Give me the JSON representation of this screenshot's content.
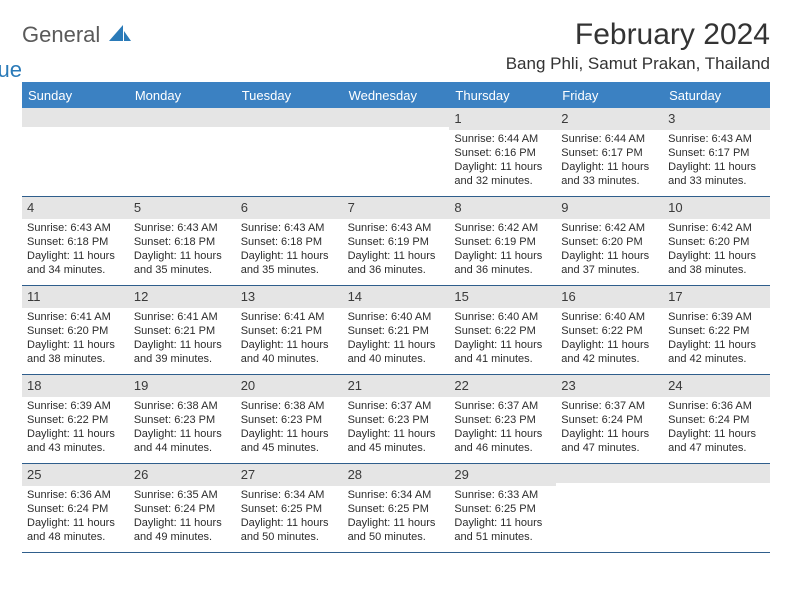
{
  "brand": {
    "word1": "General",
    "word2": "Blue"
  },
  "title": "February 2024",
  "location": "Bang Phli, Samut Prakan, Thailand",
  "colors": {
    "header_bar": "#3b81c2",
    "daynum_bg": "#e5e5e5",
    "week_divider": "#2f5e8c",
    "text": "#2c2c2c",
    "brand_gray": "#5a5a5a",
    "brand_blue": "#2a7ab8"
  },
  "dow": [
    "Sunday",
    "Monday",
    "Tuesday",
    "Wednesday",
    "Thursday",
    "Friday",
    "Saturday"
  ],
  "weeks": [
    [
      {
        "day": "",
        "empty": true
      },
      {
        "day": "",
        "empty": true
      },
      {
        "day": "",
        "empty": true
      },
      {
        "day": "",
        "empty": true
      },
      {
        "day": "1",
        "sunrise": "Sunrise: 6:44 AM",
        "sunset": "Sunset: 6:16 PM",
        "daylight": "Daylight: 11 hours and 32 minutes."
      },
      {
        "day": "2",
        "sunrise": "Sunrise: 6:44 AM",
        "sunset": "Sunset: 6:17 PM",
        "daylight": "Daylight: 11 hours and 33 minutes."
      },
      {
        "day": "3",
        "sunrise": "Sunrise: 6:43 AM",
        "sunset": "Sunset: 6:17 PM",
        "daylight": "Daylight: 11 hours and 33 minutes."
      }
    ],
    [
      {
        "day": "4",
        "sunrise": "Sunrise: 6:43 AM",
        "sunset": "Sunset: 6:18 PM",
        "daylight": "Daylight: 11 hours and 34 minutes."
      },
      {
        "day": "5",
        "sunrise": "Sunrise: 6:43 AM",
        "sunset": "Sunset: 6:18 PM",
        "daylight": "Daylight: 11 hours and 35 minutes."
      },
      {
        "day": "6",
        "sunrise": "Sunrise: 6:43 AM",
        "sunset": "Sunset: 6:18 PM",
        "daylight": "Daylight: 11 hours and 35 minutes."
      },
      {
        "day": "7",
        "sunrise": "Sunrise: 6:43 AM",
        "sunset": "Sunset: 6:19 PM",
        "daylight": "Daylight: 11 hours and 36 minutes."
      },
      {
        "day": "8",
        "sunrise": "Sunrise: 6:42 AM",
        "sunset": "Sunset: 6:19 PM",
        "daylight": "Daylight: 11 hours and 36 minutes."
      },
      {
        "day": "9",
        "sunrise": "Sunrise: 6:42 AM",
        "sunset": "Sunset: 6:20 PM",
        "daylight": "Daylight: 11 hours and 37 minutes."
      },
      {
        "day": "10",
        "sunrise": "Sunrise: 6:42 AM",
        "sunset": "Sunset: 6:20 PM",
        "daylight": "Daylight: 11 hours and 38 minutes."
      }
    ],
    [
      {
        "day": "11",
        "sunrise": "Sunrise: 6:41 AM",
        "sunset": "Sunset: 6:20 PM",
        "daylight": "Daylight: 11 hours and 38 minutes."
      },
      {
        "day": "12",
        "sunrise": "Sunrise: 6:41 AM",
        "sunset": "Sunset: 6:21 PM",
        "daylight": "Daylight: 11 hours and 39 minutes."
      },
      {
        "day": "13",
        "sunrise": "Sunrise: 6:41 AM",
        "sunset": "Sunset: 6:21 PM",
        "daylight": "Daylight: 11 hours and 40 minutes."
      },
      {
        "day": "14",
        "sunrise": "Sunrise: 6:40 AM",
        "sunset": "Sunset: 6:21 PM",
        "daylight": "Daylight: 11 hours and 40 minutes."
      },
      {
        "day": "15",
        "sunrise": "Sunrise: 6:40 AM",
        "sunset": "Sunset: 6:22 PM",
        "daylight": "Daylight: 11 hours and 41 minutes."
      },
      {
        "day": "16",
        "sunrise": "Sunrise: 6:40 AM",
        "sunset": "Sunset: 6:22 PM",
        "daylight": "Daylight: 11 hours and 42 minutes."
      },
      {
        "day": "17",
        "sunrise": "Sunrise: 6:39 AM",
        "sunset": "Sunset: 6:22 PM",
        "daylight": "Daylight: 11 hours and 42 minutes."
      }
    ],
    [
      {
        "day": "18",
        "sunrise": "Sunrise: 6:39 AM",
        "sunset": "Sunset: 6:22 PM",
        "daylight": "Daylight: 11 hours and 43 minutes."
      },
      {
        "day": "19",
        "sunrise": "Sunrise: 6:38 AM",
        "sunset": "Sunset: 6:23 PM",
        "daylight": "Daylight: 11 hours and 44 minutes."
      },
      {
        "day": "20",
        "sunrise": "Sunrise: 6:38 AM",
        "sunset": "Sunset: 6:23 PM",
        "daylight": "Daylight: 11 hours and 45 minutes."
      },
      {
        "day": "21",
        "sunrise": "Sunrise: 6:37 AM",
        "sunset": "Sunset: 6:23 PM",
        "daylight": "Daylight: 11 hours and 45 minutes."
      },
      {
        "day": "22",
        "sunrise": "Sunrise: 6:37 AM",
        "sunset": "Sunset: 6:23 PM",
        "daylight": "Daylight: 11 hours and 46 minutes."
      },
      {
        "day": "23",
        "sunrise": "Sunrise: 6:37 AM",
        "sunset": "Sunset: 6:24 PM",
        "daylight": "Daylight: 11 hours and 47 minutes."
      },
      {
        "day": "24",
        "sunrise": "Sunrise: 6:36 AM",
        "sunset": "Sunset: 6:24 PM",
        "daylight": "Daylight: 11 hours and 47 minutes."
      }
    ],
    [
      {
        "day": "25",
        "sunrise": "Sunrise: 6:36 AM",
        "sunset": "Sunset: 6:24 PM",
        "daylight": "Daylight: 11 hours and 48 minutes."
      },
      {
        "day": "26",
        "sunrise": "Sunrise: 6:35 AM",
        "sunset": "Sunset: 6:24 PM",
        "daylight": "Daylight: 11 hours and 49 minutes."
      },
      {
        "day": "27",
        "sunrise": "Sunrise: 6:34 AM",
        "sunset": "Sunset: 6:25 PM",
        "daylight": "Daylight: 11 hours and 50 minutes."
      },
      {
        "day": "28",
        "sunrise": "Sunrise: 6:34 AM",
        "sunset": "Sunset: 6:25 PM",
        "daylight": "Daylight: 11 hours and 50 minutes."
      },
      {
        "day": "29",
        "sunrise": "Sunrise: 6:33 AM",
        "sunset": "Sunset: 6:25 PM",
        "daylight": "Daylight: 11 hours and 51 minutes."
      },
      {
        "day": "",
        "empty": true
      },
      {
        "day": "",
        "empty": true
      }
    ]
  ]
}
